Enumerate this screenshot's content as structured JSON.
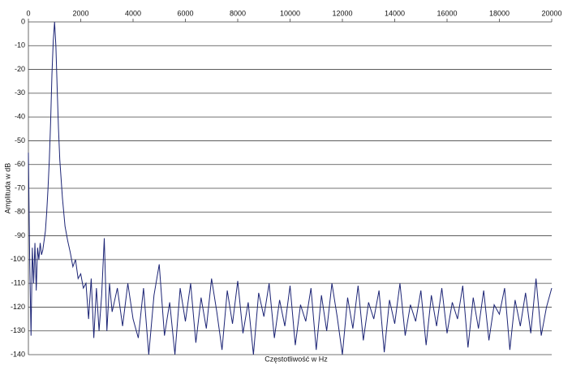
{
  "chart_data": {
    "type": "line",
    "x_label": "Częstotliwość w Hz",
    "y_label": "Amplituda w dB",
    "color": "#1c2475",
    "grid": true,
    "xlim": [
      0,
      20000
    ],
    "xticks": [
      0,
      2000,
      4000,
      6000,
      8000,
      10000,
      12000,
      14000,
      16000,
      18000,
      20000
    ],
    "ylim": [
      -140,
      0
    ],
    "yticks": [
      0,
      -10,
      -20,
      -30,
      -40,
      -50,
      -60,
      -70,
      -80,
      -90,
      -100,
      -110,
      -120,
      -130,
      -140
    ],
    "x": [
      0,
      50,
      100,
      150,
      200,
      250,
      300,
      350,
      400,
      450,
      500,
      550,
      600,
      650,
      700,
      750,
      800,
      850,
      900,
      950,
      1000,
      1050,
      1100,
      1150,
      1200,
      1300,
      1400,
      1500,
      1600,
      1700,
      1800,
      1900,
      2000,
      2100,
      2200,
      2300,
      2400,
      2500,
      2600,
      2700,
      2800,
      2900,
      3000,
      3100,
      3200,
      3400,
      3600,
      3800,
      4000,
      4200,
      4400,
      4600,
      4800,
      5000,
      5200,
      5400,
      5600,
      5800,
      6000,
      6200,
      6400,
      6600,
      6800,
      7000,
      7200,
      7400,
      7600,
      7800,
      8000,
      8200,
      8400,
      8600,
      8800,
      9000,
      9200,
      9400,
      9600,
      9800,
      10000,
      10200,
      10400,
      10600,
      10800,
      11000,
      11200,
      11400,
      11600,
      11800,
      12000,
      12200,
      12400,
      12600,
      12800,
      13000,
      13200,
      13400,
      13600,
      13800,
      14000,
      14200,
      14400,
      14600,
      14800,
      15000,
      15200,
      15400,
      15600,
      15800,
      16000,
      16200,
      16400,
      16600,
      16800,
      17000,
      17200,
      17400,
      17600,
      17800,
      18000,
      18200,
      18400,
      18600,
      18800,
      19000,
      19200,
      19400,
      19600,
      19800,
      20000
    ],
    "values": [
      -55,
      -100,
      -132,
      -95,
      -110,
      -93,
      -113,
      -95,
      -100,
      -93,
      -98,
      -96,
      -92,
      -88,
      -80,
      -70,
      -58,
      -42,
      -22,
      -8,
      0,
      -10,
      -28,
      -45,
      -58,
      -74,
      -86,
      -92,
      -97,
      -103,
      -100,
      -108,
      -106,
      -112,
      -110,
      -125,
      -108,
      -133,
      -112,
      -130,
      -115,
      -91,
      -130,
      -110,
      -122,
      -112,
      -128,
      -110,
      -125,
      -133,
      -112,
      -140,
      -115,
      -102,
      -132,
      -118,
      -140,
      -112,
      -126,
      -110,
      -135,
      -116,
      -129,
      -108,
      -122,
      -138,
      -113,
      -127,
      -109,
      -131,
      -118,
      -140,
      -114,
      -124,
      -110,
      -133,
      -117,
      -128,
      -111,
      -136,
      -119,
      -126,
      -112,
      -138,
      -115,
      -130,
      -110,
      -124,
      -140,
      -116,
      -129,
      -111,
      -134,
      -118,
      -125,
      -113,
      -139,
      -117,
      -127,
      -110,
      -132,
      -119,
      -126,
      -113,
      -136,
      -115,
      -128,
      -112,
      -131,
      -118,
      -125,
      -111,
      -137,
      -116,
      -129,
      -113,
      -134,
      -119,
      -123,
      -112,
      -138,
      -117,
      -128,
      -114,
      -131,
      -108,
      -132,
      -120,
      -112
    ]
  }
}
